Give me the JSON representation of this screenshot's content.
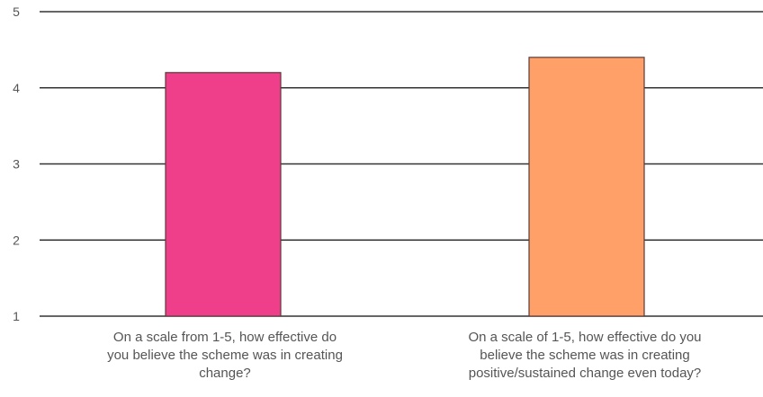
{
  "chart_data": {
    "type": "bar",
    "ylim": [
      1,
      5
    ],
    "yticks": [
      "1",
      "2",
      "3",
      "4",
      "5"
    ],
    "categories": [
      {
        "lines": [
          "On a scale from 1-5, how effective do",
          "you believe the scheme was in creating",
          "change?"
        ],
        "value": 4.2,
        "color": "#ef3f8a"
      },
      {
        "lines": [
          "On a scale of 1-5, how effective do you",
          "believe the scheme was in creating",
          "positive/sustained change even today?"
        ],
        "value": 4.4,
        "color": "#ffa068"
      }
    ],
    "grid": true,
    "legend": "none"
  }
}
